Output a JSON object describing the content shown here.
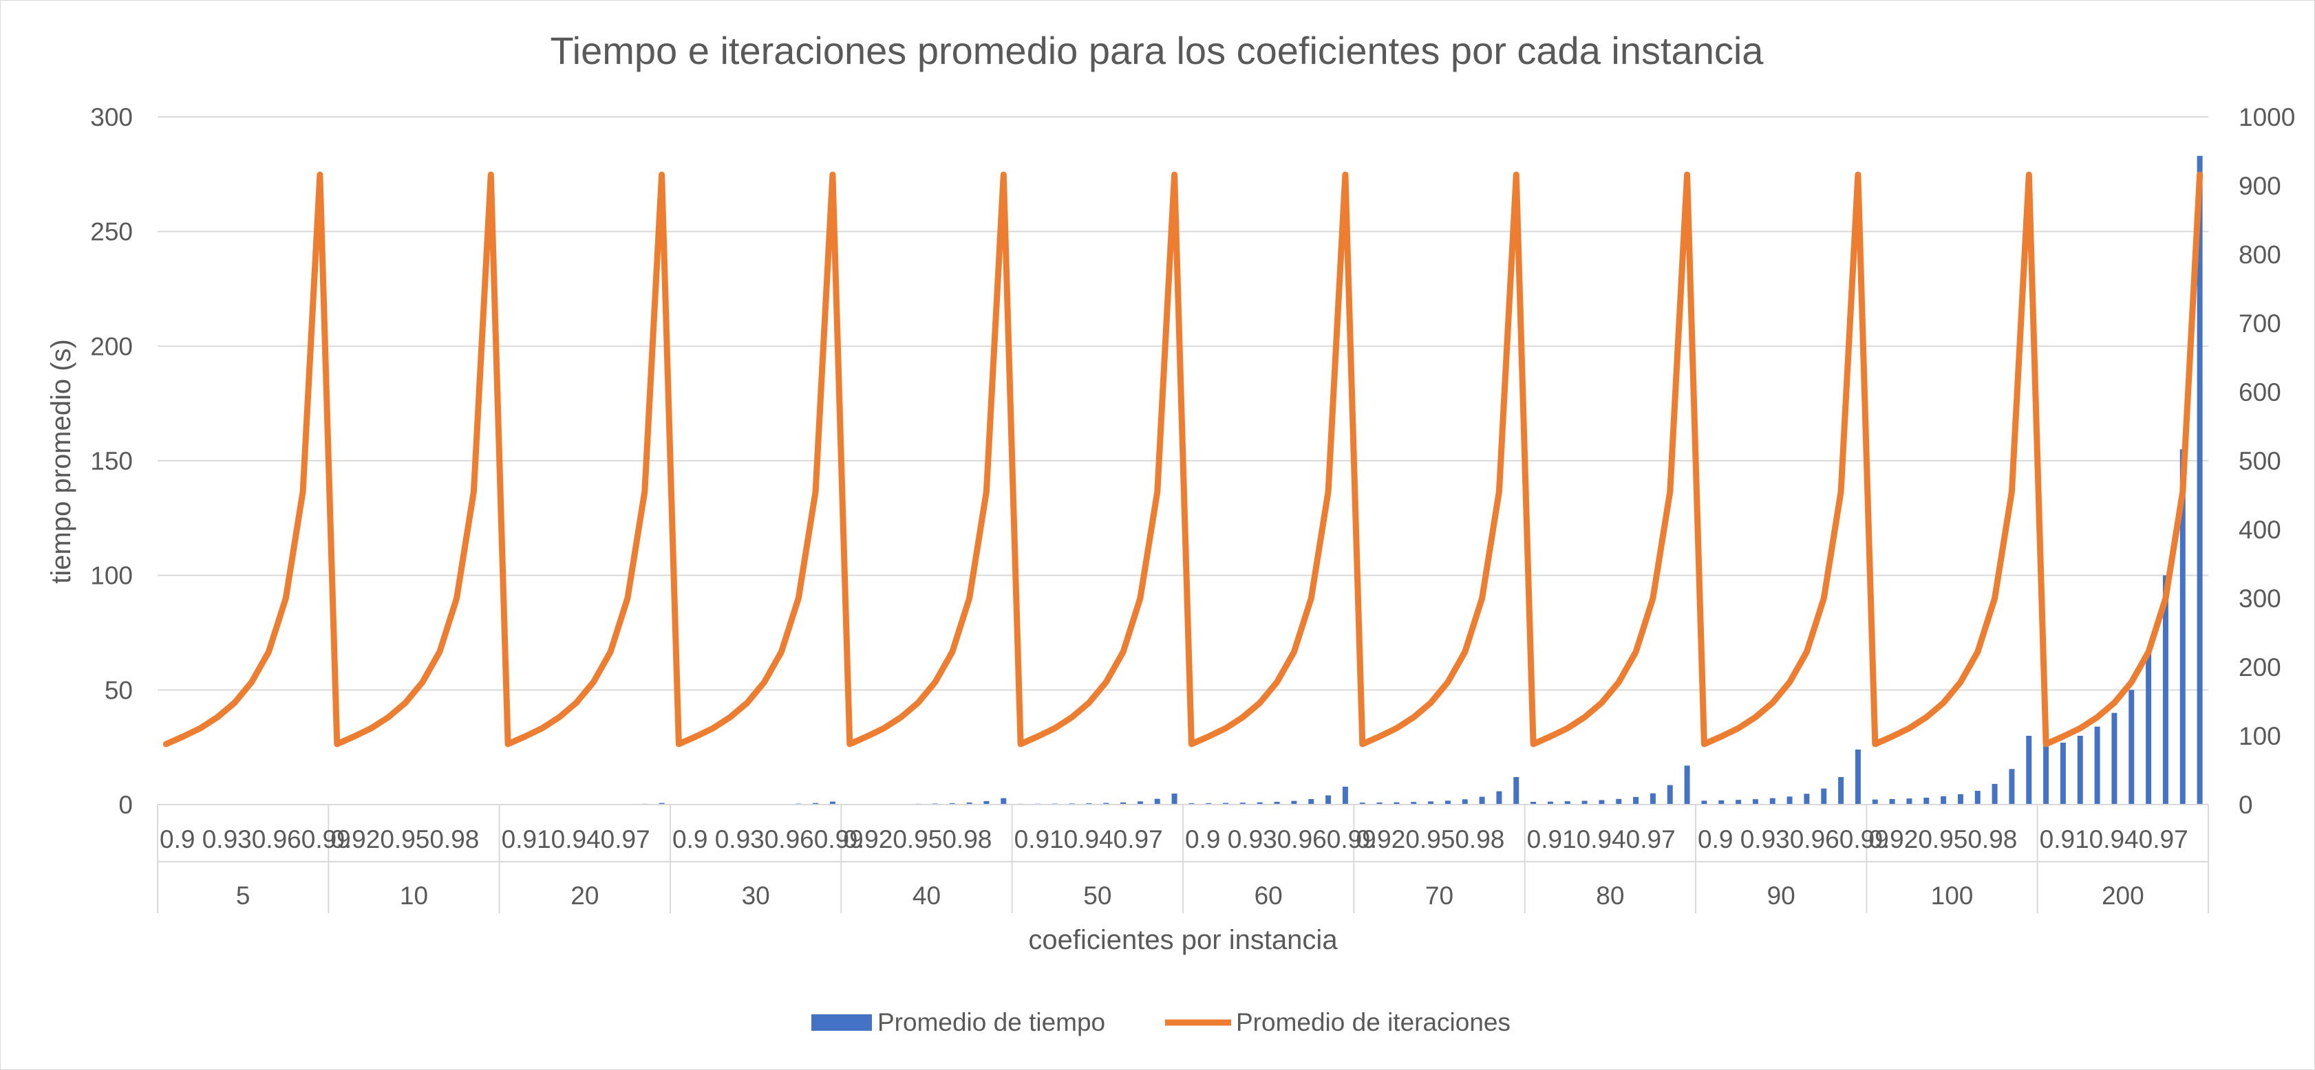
{
  "chart_data": {
    "type": "bar",
    "title": "Tiempo e iteraciones promedio para los coeficientes por cada instancia",
    "xlabel": "coeficientes por instancia",
    "ylabel": "tiempo promedio (s)",
    "y2label": "",
    "ylim": [
      0,
      300
    ],
    "yticks": [
      0,
      50,
      100,
      150,
      200,
      250,
      300
    ],
    "y2lim": [
      0,
      1000
    ],
    "y2ticks": [
      0,
      100,
      200,
      300,
      400,
      500,
      600,
      700,
      800,
      900,
      1000
    ],
    "grid": true,
    "legend_position": "bottom",
    "groups": [
      "5",
      "10",
      "20",
      "30",
      "40",
      "50",
      "60",
      "70",
      "80",
      "90",
      "100",
      "200"
    ],
    "coefficients": [
      "0.9",
      "0.91",
      "0.92",
      "0.93",
      "0.94",
      "0.95",
      "0.96",
      "0.97",
      "0.98",
      "0.99"
    ],
    "coefficient_tick_labels": [
      "0.9 0.930.960.99",
      "0.920.950.98",
      "0.910.940.97",
      "0.9 0.930.960.99",
      "0.920.950.98",
      "0.910.940.97",
      "0.9 0.930.960.99",
      "0.920.950.98",
      "0.910.940.97",
      "0.9 0.930.960.99",
      "0.920.950.98",
      "0.910.940.97"
    ],
    "series": [
      {
        "name": "Promedio de tiempo",
        "axis": "left",
        "type": "bar",
        "color": "#4472C4",
        "values": [
          [
            0.01,
            0.01,
            0.01,
            0.01,
            0.01,
            0.01,
            0.02,
            0.03,
            0.05,
            0.1
          ],
          [
            0.02,
            0.02,
            0.03,
            0.03,
            0.04,
            0.05,
            0.07,
            0.1,
            0.15,
            0.3
          ],
          [
            0.05,
            0.05,
            0.06,
            0.07,
            0.09,
            0.11,
            0.15,
            0.22,
            0.35,
            0.7
          ],
          [
            0.1,
            0.11,
            0.12,
            0.14,
            0.17,
            0.21,
            0.28,
            0.42,
            0.7,
            1.3
          ],
          [
            0.2,
            0.22,
            0.25,
            0.3,
            0.36,
            0.45,
            0.6,
            0.9,
            1.5,
            2.8
          ],
          [
            0.35,
            0.38,
            0.42,
            0.48,
            0.58,
            0.72,
            0.95,
            1.4,
            2.5,
            4.8
          ],
          [
            0.6,
            0.65,
            0.72,
            0.82,
            0.98,
            1.2,
            1.6,
            2.4,
            4.0,
            7.8
          ],
          [
            0.85,
            0.9,
            1.0,
            1.15,
            1.38,
            1.7,
            2.3,
            3.4,
            5.8,
            12
          ],
          [
            1.2,
            1.3,
            1.45,
            1.65,
            1.95,
            2.45,
            3.3,
            4.9,
            8.5,
            17
          ],
          [
            1.7,
            1.85,
            2.05,
            2.35,
            2.8,
            3.5,
            4.7,
            7.0,
            12,
            24
          ],
          [
            2.2,
            2.4,
            2.65,
            3.0,
            3.6,
            4.5,
            6.0,
            9.0,
            15.5,
            30
          ],
          [
            30,
            27,
            30,
            34,
            40,
            50,
            66,
            100,
            155,
            283
          ]
        ]
      },
      {
        "name": "Promedio de iteraciones",
        "axis": "right",
        "type": "line",
        "color": "#ED7D31",
        "values_per_group": [
          88,
          99,
          111,
          127,
          148,
          178,
          222,
          300,
          455,
          916
        ]
      }
    ]
  }
}
